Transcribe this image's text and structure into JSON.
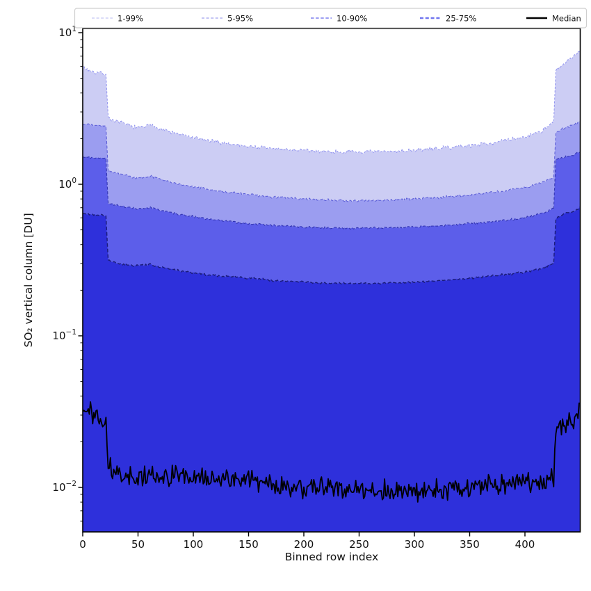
{
  "chart_data": {
    "type": "line",
    "subtype": "percentile-fan",
    "title": "",
    "xlabel": "Binned row index",
    "ylabel": "SO₂ vertical column [DU]",
    "y_scale": "log",
    "x_range": [
      0,
      450
    ],
    "y_range": [
      0.0051,
      10.65
    ],
    "grid": "off",
    "x_ticks": [
      0,
      50,
      100,
      150,
      200,
      250,
      300,
      350,
      400
    ],
    "y_ticks": [
      {
        "value": 0.01,
        "base": "10",
        "exp": "−2"
      },
      {
        "value": 0.1,
        "base": "10",
        "exp": "−1"
      },
      {
        "value": 1,
        "base": "10",
        "exp": "0"
      },
      {
        "value": 10,
        "base": "10",
        "exp": "1"
      }
    ],
    "x_control": [
      0,
      10,
      21,
      23,
      30,
      50,
      62,
      80,
      100,
      125,
      150,
      175,
      200,
      225,
      250,
      275,
      300,
      325,
      350,
      375,
      400,
      415,
      426,
      428,
      436,
      443,
      450
    ],
    "bands": [
      {
        "key": "p99",
        "label": "1-99%",
        "upper_percentile": 99,
        "fill": "#cccdf4",
        "edge_color": "#9193ef",
        "edge_width": 1.0,
        "edge_dash": "3 2.2",
        "jitter_log10": 0.016,
        "upper_values": [
          5.9,
          5.5,
          5.35,
          2.75,
          2.6,
          2.35,
          2.45,
          2.2,
          2.02,
          1.88,
          1.78,
          1.71,
          1.67,
          1.64,
          1.63,
          1.64,
          1.68,
          1.73,
          1.8,
          1.9,
          2.05,
          2.25,
          2.55,
          5.6,
          6.3,
          6.8,
          7.8
        ]
      },
      {
        "key": "p95",
        "label": "5-95%",
        "upper_percentile": 95,
        "fill": "#9b9df0",
        "edge_color": "#585ad6",
        "edge_width": 1.0,
        "edge_dash": "4 2.6",
        "jitter_log10": 0.01,
        "upper_values": [
          2.5,
          2.45,
          2.4,
          1.22,
          1.18,
          1.1,
          1.13,
          1.03,
          0.96,
          0.9,
          0.855,
          0.82,
          0.8,
          0.785,
          0.78,
          0.785,
          0.8,
          0.82,
          0.85,
          0.89,
          0.95,
          1.03,
          1.12,
          2.2,
          2.35,
          2.45,
          2.6
        ]
      },
      {
        "key": "p90",
        "label": "10-90%",
        "upper_percentile": 90,
        "fill": "#5c5eea",
        "edge_color": "#3335b2",
        "edge_width": 1.1,
        "edge_dash": "4 2.6",
        "jitter_log10": 0.009,
        "upper_values": [
          1.52,
          1.5,
          1.48,
          0.75,
          0.73,
          0.685,
          0.7,
          0.65,
          0.61,
          0.575,
          0.55,
          0.535,
          0.522,
          0.515,
          0.512,
          0.515,
          0.523,
          0.535,
          0.55,
          0.57,
          0.6,
          0.645,
          0.69,
          1.45,
          1.52,
          1.56,
          1.63
        ]
      },
      {
        "key": "p75",
        "label": "25-75%",
        "upper_percentile": 75,
        "fill": "#2e30db",
        "edge_color": "#1b1c78",
        "edge_width": 1.4,
        "edge_dash": "5 3",
        "jitter_log10": 0.009,
        "upper_values": [
          0.64,
          0.63,
          0.62,
          0.315,
          0.3,
          0.29,
          0.295,
          0.275,
          0.26,
          0.248,
          0.24,
          0.231,
          0.226,
          0.222,
          0.221,
          0.222,
          0.226,
          0.232,
          0.24,
          0.25,
          0.263,
          0.28,
          0.3,
          0.6,
          0.64,
          0.66,
          0.7
        ]
      }
    ],
    "median": {
      "key": "median",
      "label": "Median",
      "color": "#000000",
      "width": 1.8,
      "jitter_log10": 0.085,
      "values": [
        0.032,
        0.03,
        0.027,
        0.0135,
        0.0125,
        0.0115,
        0.012,
        0.012,
        0.0115,
        0.0115,
        0.011,
        0.0105,
        0.0102,
        0.01,
        0.0097,
        0.0095,
        0.0095,
        0.0098,
        0.01,
        0.0105,
        0.011,
        0.011,
        0.0115,
        0.024,
        0.027,
        0.026,
        0.034
      ]
    }
  },
  "legend": {
    "border_color": "#cfcfcf",
    "background": "#ffffff",
    "entries": [
      {
        "label": "1-99%",
        "color": "#c3c5f3",
        "dash": "4 2.6",
        "width": 1.2
      },
      {
        "label": "5-95%",
        "color": "#9fa1ee",
        "dash": "4 2.6",
        "width": 1.2
      },
      {
        "label": "10-90%",
        "color": "#7c7fee",
        "dash": "4.5 2.6",
        "width": 1.5
      },
      {
        "label": "25-75%",
        "color": "#7176ef",
        "dash": "5 2.8",
        "width": 2.4
      },
      {
        "label": "Median",
        "color": "#000000",
        "dash": null,
        "width": 2.6
      }
    ]
  },
  "axis": {
    "frame_color": "#000000",
    "tick_color": "#000000"
  }
}
